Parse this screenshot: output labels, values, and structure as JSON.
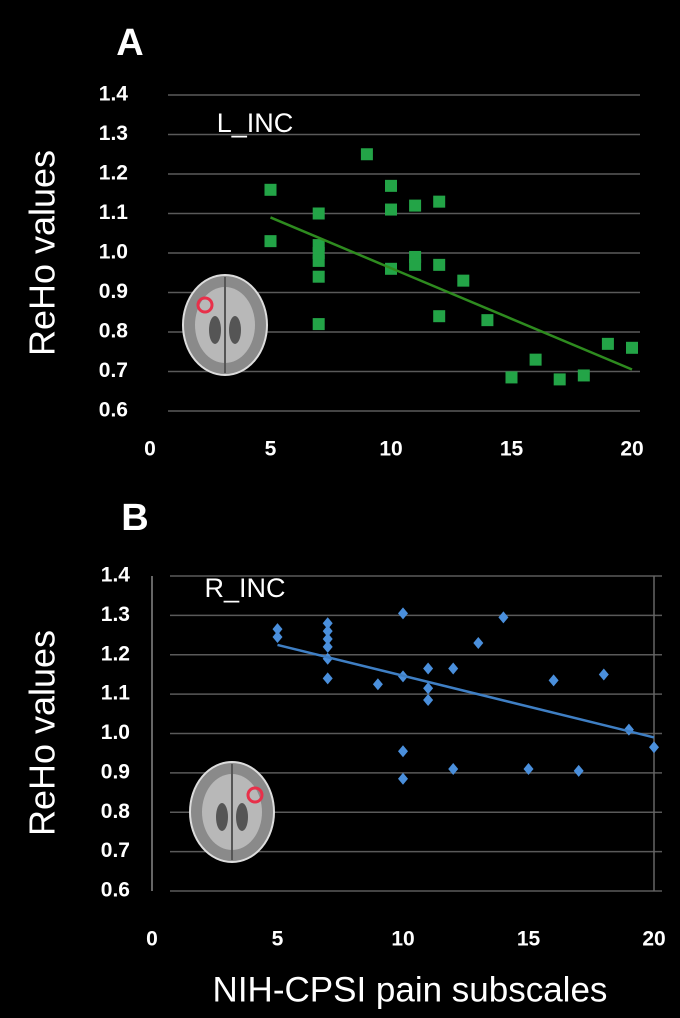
{
  "chart_data": [
    {
      "type": "scatter",
      "panel": "A",
      "annotation": "L_INC",
      "ylabel": "ReHo values",
      "color": "#23a447",
      "line_color": "#2e8b1f",
      "x": [
        5,
        5,
        7,
        7,
        7,
        7,
        7,
        7,
        9,
        10,
        10,
        10,
        11,
        11,
        11,
        12,
        12,
        12,
        13,
        14,
        15,
        16,
        17,
        18,
        19,
        20
      ],
      "values": [
        1.16,
        1.03,
        1.1,
        1.02,
        1.0,
        0.98,
        0.94,
        0.82,
        1.25,
        1.17,
        1.11,
        0.96,
        1.12,
        0.99,
        0.97,
        1.13,
        0.97,
        0.84,
        0.93,
        0.83,
        0.685,
        0.73,
        0.68,
        0.69,
        0.77,
        0.76
      ],
      "trendline": {
        "x": [
          5,
          20
        ],
        "y": [
          1.09,
          0.705
        ]
      },
      "xlim": [
        0,
        20
      ],
      "xticks": [
        0,
        5,
        10,
        15,
        20
      ],
      "ylim": [
        0.6,
        1.4
      ],
      "yticks": [
        1.4,
        1.3,
        1.2,
        1.1,
        {
          "value": 1,
          "label": "1.0"
        },
        0.9,
        0.8,
        0.7,
        0.6
      ],
      "grid": true
    },
    {
      "type": "scatter",
      "panel": "B",
      "annotation": "R_INC",
      "ylabel": "ReHo values",
      "xlabel": "NIH-CPSI pain subscales",
      "color": "#4a8fdc",
      "line_color": "#3f7fc4",
      "x": [
        5,
        5,
        7,
        7,
        7,
        7,
        7,
        7,
        9,
        10,
        10,
        10,
        10,
        11,
        11,
        11,
        12,
        12,
        13,
        14,
        15,
        16,
        17,
        18,
        19,
        20
      ],
      "values": [
        1.265,
        1.245,
        1.28,
        1.26,
        1.24,
        1.22,
        1.19,
        1.14,
        1.125,
        1.305,
        1.145,
        0.955,
        0.885,
        1.165,
        1.115,
        1.085,
        1.165,
        0.91,
        1.23,
        1.295,
        0.91,
        1.135,
        0.905,
        1.15,
        1.01,
        0.965
      ],
      "trendline": {
        "x": [
          5,
          20
        ],
        "y": [
          1.225,
          0.99
        ]
      },
      "xlim": [
        0,
        20
      ],
      "xticks": [
        0,
        5,
        10,
        15,
        20
      ],
      "ylim": [
        0.6,
        1.4
      ],
      "yticks": [
        1.4,
        1.3,
        1.2,
        1.1,
        {
          "value": 1,
          "label": "1.0"
        },
        0.9,
        0.8,
        0.7,
        0.6
      ],
      "grid": true
    }
  ]
}
